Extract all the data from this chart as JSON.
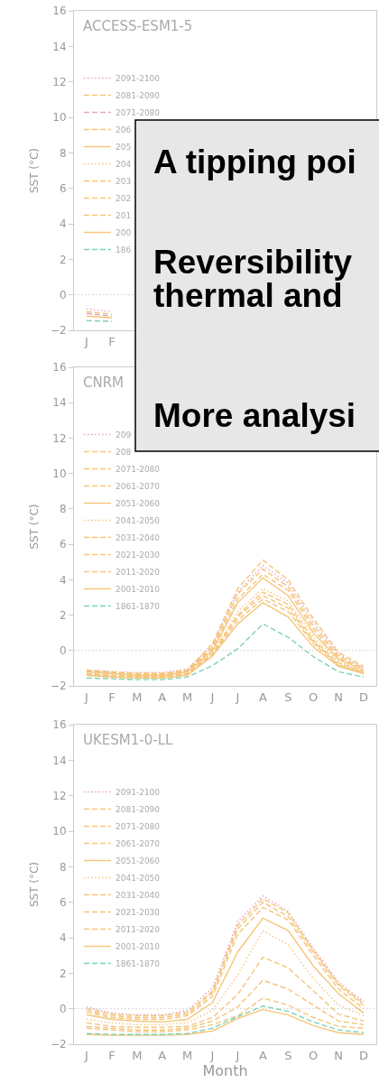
{
  "chart_data": [
    {
      "type": "line",
      "title": "ACCESS-ESM1-5",
      "ylabel": "SST (°C)",
      "legend": "top left",
      "categories": [
        "J",
        "F",
        null,
        null,
        null,
        null,
        null,
        null,
        null,
        null,
        null,
        null
      ],
      "ylim": [
        -2,
        16
      ],
      "yticks": [
        -2,
        0,
        2,
        4,
        6,
        8,
        10,
        12,
        14,
        16
      ],
      "ref_lines": [
        {
          "axis": "y",
          "value": 0,
          "color": "#cccccc",
          "line_style": "dotted"
        }
      ],
      "annotations": [
        "A tipping poi",
        "Reversibility",
        "thermal and"
      ],
      "series": [
        {
          "name": "2091-2100",
          "color": "#e6a3c4",
          "line_style": "dotted",
          "values": [
            -0.8,
            -0.95,
            null,
            null,
            null,
            null,
            null,
            null,
            null,
            null,
            null,
            null
          ]
        },
        {
          "name": "2081-2090",
          "color": "#f5c57a",
          "line_style": "dashed",
          "values": [
            -0.95,
            -1.1,
            null,
            null,
            null,
            null,
            null,
            null,
            null,
            null,
            null,
            null
          ]
        },
        {
          "name": "2071-2080",
          "color": "#e6a3c4",
          "line_style": "dashed",
          "values": [
            -1.05,
            -1.2,
            null,
            null,
            null,
            null,
            null,
            null,
            null,
            null,
            null,
            null
          ]
        },
        {
          "name": "206",
          "color": "#f5c57a",
          "line_style": "dashed",
          "values": [
            null,
            null,
            null,
            null,
            null,
            null,
            null,
            null,
            null,
            null,
            null,
            null
          ]
        },
        {
          "name": "205",
          "color": "#f5c57a",
          "line_style": "solid",
          "values": [
            null,
            null,
            null,
            null,
            null,
            null,
            null,
            null,
            null,
            null,
            null,
            null
          ]
        },
        {
          "name": "204",
          "color": "#f5c57a",
          "line_style": "dotted",
          "values": [
            null,
            null,
            null,
            null,
            null,
            null,
            null,
            null,
            null,
            null,
            null,
            null
          ]
        },
        {
          "name": "203",
          "color": "#f5c57a",
          "line_style": "dashed",
          "values": [
            null,
            null,
            null,
            null,
            null,
            null,
            null,
            null,
            null,
            null,
            null,
            null
          ]
        },
        {
          "name": "202",
          "color": "#f5c57a",
          "line_style": "dashed",
          "values": [
            null,
            null,
            null,
            null,
            null,
            null,
            null,
            null,
            null,
            null,
            null,
            null
          ]
        },
        {
          "name": "201",
          "color": "#f5c57a",
          "line_style": "dashed",
          "values": [
            null,
            null,
            null,
            null,
            null,
            null,
            null,
            null,
            null,
            null,
            null,
            null
          ]
        },
        {
          "name": "200",
          "color": "#f5c57a",
          "line_style": "solid",
          "values": [
            -1.2,
            -1.3,
            null,
            null,
            null,
            null,
            null,
            null,
            null,
            null,
            null,
            null
          ]
        },
        {
          "name": "186",
          "color": "#7dd3b8",
          "line_style": "dashed",
          "values": [
            -1.45,
            -1.5,
            null,
            null,
            null,
            null,
            null,
            null,
            null,
            null,
            null,
            null
          ]
        }
      ]
    },
    {
      "type": "line",
      "title": "CNRM",
      "ylabel": "SST (°C)",
      "legend": "top left",
      "annotations": [
        "More analysi"
      ],
      "categories": [
        "J",
        "F",
        "M",
        "A",
        "M",
        "J",
        "J",
        "A",
        "S",
        "O",
        "N",
        "D"
      ],
      "ylim": [
        -2,
        16
      ],
      "yticks": [
        -2,
        0,
        2,
        4,
        6,
        8,
        10,
        12,
        14,
        16
      ],
      "ref_lines": [
        {
          "axis": "y",
          "value": 0,
          "color": "#cccccc",
          "line_style": "dotted"
        }
      ],
      "series": [
        {
          "name": "209",
          "color": "#e6a3c4",
          "line_style": "dotted",
          "values": [
            -1.1,
            -1.2,
            -1.25,
            -1.25,
            -1.05,
            0.3,
            3.3,
            4.8,
            3.8,
            1.6,
            -0.2,
            -1.0
          ]
        },
        {
          "name": "208",
          "color": "#f5c57a",
          "line_style": "dashed",
          "values": [
            -1.1,
            -1.2,
            -1.3,
            -1.3,
            -1.1,
            0.4,
            3.5,
            5.1,
            4.0,
            1.8,
            -0.1,
            -0.9
          ]
        },
        {
          "name": "2071-2080",
          "color": "#f5c57a",
          "line_style": "dashed",
          "values": [
            -1.15,
            -1.25,
            -1.3,
            -1.3,
            -1.1,
            0.2,
            3.2,
            4.6,
            3.6,
            1.4,
            -0.3,
            -1.0
          ]
        },
        {
          "name": "2061-2070",
          "color": "#f5c57a",
          "line_style": "dashed",
          "values": [
            -1.2,
            -1.3,
            -1.35,
            -1.35,
            -1.15,
            0.1,
            2.9,
            4.3,
            3.4,
            1.2,
            -0.4,
            -1.1
          ]
        },
        {
          "name": "2051-2060",
          "color": "#f5c57a",
          "line_style": "solid",
          "values": [
            -1.2,
            -1.3,
            -1.4,
            -1.4,
            -1.2,
            0.0,
            2.7,
            4.1,
            3.1,
            1.0,
            -0.5,
            -1.1
          ]
        },
        {
          "name": "2041-2050",
          "color": "#f5c57a",
          "line_style": "dotted",
          "values": [
            -1.3,
            -1.4,
            -1.45,
            -1.45,
            -1.25,
            -0.1,
            2.2,
            3.5,
            2.8,
            0.8,
            -0.6,
            -1.2
          ]
        },
        {
          "name": "2031-2040",
          "color": "#f5c57a",
          "line_style": "dashed",
          "values": [
            -1.3,
            -1.4,
            -1.45,
            -1.45,
            -1.3,
            -0.15,
            2.0,
            3.3,
            2.6,
            0.6,
            -0.7,
            -1.2
          ]
        },
        {
          "name": "2021-2030",
          "color": "#f5c57a",
          "line_style": "dashed",
          "values": [
            -1.35,
            -1.45,
            -1.5,
            -1.5,
            -1.3,
            -0.2,
            1.9,
            3.1,
            2.4,
            0.5,
            -0.8,
            -1.25
          ]
        },
        {
          "name": "2011-2020",
          "color": "#f5c57a",
          "line_style": "dashed",
          "values": [
            -1.35,
            -1.45,
            -1.5,
            -1.5,
            -1.35,
            -0.25,
            1.7,
            2.9,
            2.2,
            0.4,
            -0.85,
            -1.3
          ]
        },
        {
          "name": "2001-2010",
          "color": "#f5c57a",
          "line_style": "solid",
          "values": [
            -1.4,
            -1.5,
            -1.55,
            -1.55,
            -1.4,
            -0.3,
            1.5,
            2.7,
            1.9,
            0.2,
            -0.9,
            -1.3
          ]
        },
        {
          "name": "1861-1870",
          "color": "#7dd3b8",
          "line_style": "dashed",
          "values": [
            -1.55,
            -1.6,
            -1.65,
            -1.65,
            -1.5,
            -0.85,
            0.1,
            1.5,
            0.75,
            -0.35,
            -1.2,
            -1.5
          ]
        }
      ]
    },
    {
      "type": "line",
      "title": "UKESM1-0-LL",
      "ylabel": "SST (°C)",
      "xlabel": "Month",
      "legend": "top left",
      "categories": [
        "J",
        "F",
        "M",
        "A",
        "M",
        "J",
        "J",
        "A",
        "S",
        "O",
        "N",
        "D"
      ],
      "ylim": [
        -2,
        16
      ],
      "yticks": [
        -2,
        0,
        2,
        4,
        6,
        8,
        10,
        12,
        14,
        16
      ],
      "ref_lines": [
        {
          "axis": "y",
          "value": 0,
          "color": "#cccccc",
          "line_style": "dotted"
        }
      ],
      "series": [
        {
          "name": "2091-2100",
          "color": "#e6a3c4",
          "line_style": "dotted",
          "values": [
            0.1,
            -0.25,
            -0.35,
            -0.35,
            -0.1,
            1.2,
            4.9,
            6.35,
            5.5,
            3.4,
            1.5,
            0.4
          ]
        },
        {
          "name": "2081-2090",
          "color": "#f5c57a",
          "line_style": "dashed",
          "values": [
            0.0,
            -0.3,
            -0.4,
            -0.4,
            -0.2,
            1.0,
            4.7,
            6.2,
            5.4,
            3.3,
            1.4,
            0.3
          ]
        },
        {
          "name": "2071-2080",
          "color": "#f5c57a",
          "line_style": "dashed",
          "values": [
            -0.1,
            -0.4,
            -0.5,
            -0.5,
            -0.3,
            0.9,
            4.5,
            6.0,
            5.2,
            3.2,
            1.3,
            0.2
          ]
        },
        {
          "name": "2061-2070",
          "color": "#f5c57a",
          "line_style": "dashed",
          "values": [
            -0.2,
            -0.5,
            -0.6,
            -0.6,
            -0.4,
            0.7,
            4.2,
            5.7,
            5.0,
            3.0,
            1.1,
            0.0
          ]
        },
        {
          "name": "2051-2060",
          "color": "#f5c57a",
          "line_style": "solid",
          "values": [
            -0.35,
            -0.6,
            -0.7,
            -0.75,
            -0.6,
            0.35,
            3.2,
            5.1,
            4.4,
            2.4,
            0.85,
            -0.25
          ]
        },
        {
          "name": "2041-2050",
          "color": "#f5c57a",
          "line_style": "dotted",
          "values": [
            -0.6,
            -0.8,
            -0.9,
            -0.9,
            -0.8,
            -0.1,
            1.9,
            4.4,
            3.6,
            1.7,
            0.2,
            -0.4
          ]
        },
        {
          "name": "2031-2040",
          "color": "#f5c57a",
          "line_style": "dashed",
          "values": [
            -0.8,
            -1.0,
            -1.05,
            -1.05,
            -1.0,
            -0.5,
            0.8,
            2.9,
            2.3,
            1.0,
            -0.3,
            -0.7
          ]
        },
        {
          "name": "2021-2030",
          "color": "#f5c57a",
          "line_style": "dashed",
          "values": [
            -1.0,
            -1.1,
            -1.2,
            -1.2,
            -1.1,
            -0.7,
            0.1,
            1.6,
            1.1,
            0.2,
            -0.7,
            -0.9
          ]
        },
        {
          "name": "2011-2020",
          "color": "#f5c57a",
          "line_style": "dashed",
          "values": [
            -1.1,
            -1.2,
            -1.3,
            -1.3,
            -1.2,
            -0.9,
            -0.4,
            0.6,
            0.2,
            -0.5,
            -1.0,
            -1.1
          ]
        },
        {
          "name": "2001-2010",
          "color": "#f5c57a",
          "line_style": "solid",
          "values": [
            -1.45,
            -1.5,
            -1.5,
            -1.5,
            -1.45,
            -1.25,
            -0.55,
            -0.05,
            -0.35,
            -0.95,
            -1.35,
            -1.45
          ]
        },
        {
          "name": "1861-1870",
          "color": "#7dd3b8",
          "line_style": "dashed",
          "values": [
            -1.4,
            -1.45,
            -1.45,
            -1.45,
            -1.4,
            -1.1,
            -0.45,
            0.15,
            -0.15,
            -0.75,
            -1.2,
            -1.35
          ]
        }
      ]
    }
  ]
}
